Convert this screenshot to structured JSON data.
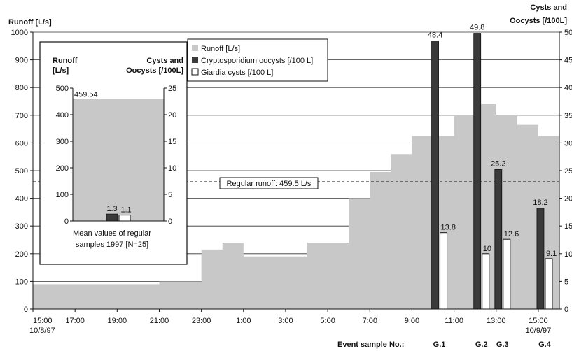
{
  "chart_data": [
    {
      "type": "bar",
      "subtype": "step-area with bars",
      "y_left_label": "Runoff [L/s]",
      "y_right_label_line1": "Cysts and",
      "y_right_label_line2": "Oocysts [/100L]",
      "y_left_range": [
        0,
        1000
      ],
      "y_left_ticks": [
        "0",
        "100",
        "200",
        "300",
        "400",
        "500",
        "600",
        "700",
        "800",
        "900",
        "1000"
      ],
      "y_right_range": [
        0,
        50
      ],
      "y_right_ticks": [
        "0",
        "5",
        "10",
        "15",
        "20",
        "25",
        "30",
        "35",
        "40",
        "45",
        "50"
      ],
      "x_range_hours": [
        0,
        25
      ],
      "x_ticks": [
        {
          "t": 0,
          "label": "15:00",
          "sub": "10/8/97"
        },
        {
          "t": 2,
          "label": "17:00",
          "sub": ""
        },
        {
          "t": 4,
          "label": "19:00",
          "sub": ""
        },
        {
          "t": 6,
          "label": "21:00",
          "sub": ""
        },
        {
          "t": 8,
          "label": "23:00",
          "sub": ""
        },
        {
          "t": 10,
          "label": "1:00",
          "sub": ""
        },
        {
          "t": 12,
          "label": "3:00",
          "sub": ""
        },
        {
          "t": 14,
          "label": "5:00",
          "sub": ""
        },
        {
          "t": 16,
          "label": "7:00",
          "sub": ""
        },
        {
          "t": 18,
          "label": "9:00",
          "sub": ""
        },
        {
          "t": 20,
          "label": "11:00",
          "sub": ""
        },
        {
          "t": 22,
          "label": "13:00",
          "sub": ""
        },
        {
          "t": 24,
          "label": "15:00",
          "sub": "10/9/97"
        }
      ],
      "runoff_steps": [
        {
          "from": 0,
          "to": 6,
          "value": 90
        },
        {
          "from": 6,
          "to": 8,
          "value": 100
        },
        {
          "from": 8,
          "to": 9,
          "value": 215
        },
        {
          "from": 9,
          "to": 10,
          "value": 240
        },
        {
          "from": 10,
          "to": 13,
          "value": 190
        },
        {
          "from": 13,
          "to": 15,
          "value": 240
        },
        {
          "from": 15,
          "to": 16,
          "value": 400
        },
        {
          "from": 16,
          "to": 17,
          "value": 495
        },
        {
          "from": 17,
          "to": 18,
          "value": 560
        },
        {
          "from": 18,
          "to": 19,
          "value": 625
        },
        {
          "from": 19,
          "to": 20,
          "value": 625
        },
        {
          "from": 20,
          "to": 21,
          "value": 700
        },
        {
          "from": 21,
          "to": 22,
          "value": 740
        },
        {
          "from": 22,
          "to": 23,
          "value": 700
        },
        {
          "from": 23,
          "to": 24,
          "value": 665
        },
        {
          "from": 24,
          "to": 25,
          "value": 625
        }
      ],
      "regular_runoff_value": 459.5,
      "regular_runoff_label": "Regular runoff: 459.5 L/s",
      "event_samples": [
        {
          "id": "G.1",
          "t": 19.3,
          "crypto": 48.4,
          "crypto_label": "48.4",
          "giardia": 13.8,
          "giardia_label": "13.8"
        },
        {
          "id": "G.2",
          "t": 21.3,
          "crypto": 49.8,
          "crypto_label": "49.8",
          "giardia": 10,
          "giardia_label": "10"
        },
        {
          "id": "G.3",
          "t": 22.3,
          "crypto": 25.2,
          "crypto_label": "25.2",
          "giardia": 12.6,
          "giardia_label": "12.6"
        },
        {
          "id": "G.4",
          "t": 24.3,
          "crypto": 18.2,
          "crypto_label": "18.2",
          "giardia": 9.1,
          "giardia_label": "9.1"
        }
      ],
      "event_sample_label": "Event sample No.:",
      "legend": [
        {
          "name": "Runoff [L/s]",
          "color": "#c8c8c8"
        },
        {
          "name": "Cryptosporidium oocysts [/100 L]",
          "color": "#3a3a3a"
        },
        {
          "name": "Giardia cysts [/100 L]",
          "color": "#ffffff"
        }
      ],
      "legend_placement": "top-center",
      "grid": true
    },
    {
      "type": "bar",
      "subtype": "inset",
      "y_left_label_line1": "Runoff",
      "y_left_label_line2": "[L/s]",
      "y_right_label_line1": "Cysts and",
      "y_right_label_line2": "Oocysts [/100L]",
      "y_left_range": [
        0,
        500
      ],
      "y_left_ticks": [
        "0",
        "100",
        "200",
        "300",
        "400",
        "500"
      ],
      "y_right_range": [
        0,
        25
      ],
      "y_right_ticks": [
        "0",
        "5",
        "10",
        "15",
        "20",
        "25"
      ],
      "runoff_mean": 459.54,
      "runoff_label": "459.54",
      "crypto_mean": 1.3,
      "crypto_label": "1.3",
      "giardia_mean": 1.1,
      "giardia_label": "1.1",
      "caption_line1": "Mean values of regular",
      "caption_line2": "samples 1997 [N=25]"
    }
  ],
  "colors": {
    "runoff": "#c8c8c8",
    "crypto": "#3a3a3a",
    "giardia": "#ffffff",
    "grid": "#333333"
  }
}
